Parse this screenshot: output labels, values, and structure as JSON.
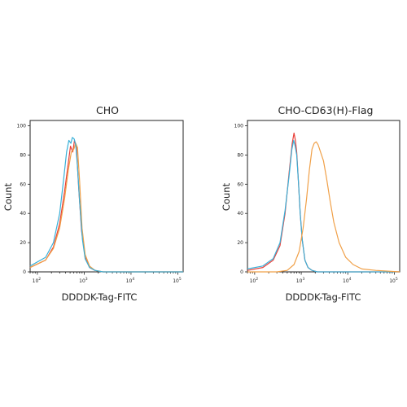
{
  "colors": {
    "red": "#e8403a",
    "orange": "#f0a048",
    "cyan": "#3ab0d8"
  },
  "chart_data": [
    {
      "type": "line",
      "title": "CHO",
      "xlabel": "DDDDK-Tag-FITC",
      "ylabel": "Count",
      "xscale": "log",
      "xlim": [
        70,
        130000
      ],
      "ylim": [
        0,
        100
      ],
      "yticks": [
        "0",
        "20",
        "40",
        "60",
        "80",
        "100"
      ],
      "xticks": [
        {
          "base": "10",
          "exp": "2"
        },
        {
          "base": "10",
          "exp": "3"
        },
        {
          "base": "10",
          "exp": "4"
        },
        {
          "base": "10",
          "exp": "5"
        }
      ],
      "series": [
        {
          "color": "#e8403a",
          "x": [
            70,
            150,
            220,
            300,
            380,
            460,
            510,
            570,
            620,
            680,
            760,
            880,
            1050,
            1300,
            1700,
            2500,
            5000,
            130000
          ],
          "y": [
            3,
            8,
            17,
            33,
            55,
            75,
            86,
            82,
            90,
            86,
            58,
            28,
            10,
            3,
            1,
            0,
            0,
            0
          ]
        },
        {
          "color": "#f0a048",
          "x": [
            70,
            150,
            220,
            300,
            380,
            460,
            530,
            600,
            660,
            720,
            800,
            900,
            1050,
            1300,
            1700,
            2500,
            5000,
            130000
          ],
          "y": [
            3,
            8,
            16,
            30,
            50,
            70,
            82,
            84,
            88,
            85,
            62,
            30,
            12,
            4,
            1,
            0,
            0,
            0
          ]
        },
        {
          "color": "#3ab0d8",
          "x": [
            70,
            150,
            220,
            300,
            360,
            420,
            470,
            520,
            560,
            610,
            660,
            720,
            800,
            920,
            1050,
            1300,
            1700,
            2500,
            130000
          ],
          "y": [
            4,
            10,
            20,
            40,
            62,
            82,
            90,
            88,
            92,
            91,
            87,
            72,
            48,
            22,
            9,
            3,
            1,
            0,
            0
          ]
        }
      ]
    },
    {
      "type": "line",
      "title": "CHO-CD63(H)-Flag",
      "xlabel": "DDDDK-Tag-FITC",
      "ylabel": "Count",
      "xscale": "log",
      "xlim": [
        70,
        130000
      ],
      "ylim": [
        0,
        100
      ],
      "yticks": [
        "0",
        "20",
        "40",
        "60",
        "80",
        "100"
      ],
      "xticks": [
        {
          "base": "10",
          "exp": "2"
        },
        {
          "base": "10",
          "exp": "3"
        },
        {
          "base": "10",
          "exp": "4"
        },
        {
          "base": "10",
          "exp": "5"
        }
      ],
      "series": [
        {
          "color": "#e8403a",
          "x": [
            70,
            150,
            250,
            350,
            450,
            550,
            640,
            700,
            750,
            800,
            870,
            950,
            1050,
            1200,
            1400,
            1700,
            2200,
            130000
          ],
          "y": [
            1,
            3,
            8,
            18,
            40,
            68,
            88,
            95,
            90,
            82,
            62,
            40,
            22,
            8,
            3,
            1,
            0,
            0
          ]
        },
        {
          "color": "#3ab0d8",
          "x": [
            70,
            150,
            250,
            350,
            450,
            550,
            630,
            690,
            740,
            800,
            870,
            950,
            1050,
            1200,
            1400,
            1700,
            2200,
            130000
          ],
          "y": [
            2,
            4,
            9,
            20,
            42,
            66,
            84,
            90,
            86,
            80,
            62,
            40,
            22,
            8,
            3,
            1,
            0,
            0
          ]
        },
        {
          "color": "#f0a048",
          "x": [
            70,
            300,
            500,
            700,
            900,
            1100,
            1300,
            1500,
            1700,
            1900,
            2100,
            2300,
            2600,
            3000,
            3500,
            4200,
            5000,
            6500,
            9000,
            13000,
            20000,
            40000,
            130000
          ],
          "y": [
            0,
            0,
            1,
            5,
            14,
            30,
            50,
            70,
            84,
            88,
            89,
            87,
            82,
            76,
            64,
            48,
            34,
            20,
            10,
            5,
            2,
            1,
            0
          ]
        }
      ]
    }
  ]
}
